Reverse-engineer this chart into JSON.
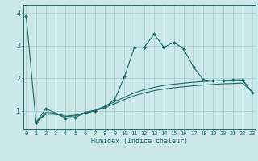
{
  "xlabel": "Humidex (Indice chaleur)",
  "bg_color": "#cce8e8",
  "grid_color": "#aacfcf",
  "line_color": "#1c6b6b",
  "yticks": [
    1,
    2,
    3,
    4
  ],
  "xticks": [
    0,
    1,
    2,
    3,
    4,
    5,
    6,
    7,
    8,
    9,
    10,
    11,
    12,
    13,
    14,
    15,
    16,
    17,
    18,
    19,
    20,
    21,
    22,
    23
  ],
  "x_spike": [
    0,
    1,
    2,
    3,
    4,
    5,
    6,
    7,
    8,
    9,
    10,
    11,
    12,
    13,
    14,
    15,
    16,
    17,
    18,
    19,
    20,
    21,
    22,
    23
  ],
  "y_spike": [
    3.9,
    0.65,
    1.07,
    0.93,
    0.78,
    0.8,
    0.95,
    1.0,
    1.12,
    1.35,
    2.05,
    2.95,
    2.95,
    3.35,
    2.95,
    3.1,
    2.9,
    2.35,
    1.95,
    1.92,
    1.92,
    1.95,
    1.95,
    1.55
  ],
  "x_smooth1": [
    1,
    2,
    3,
    4,
    5,
    6,
    7,
    8,
    9,
    10,
    11,
    12,
    13,
    14,
    15,
    16,
    17,
    18,
    19,
    20,
    21,
    22,
    23
  ],
  "y_smooth1": [
    0.65,
    0.9,
    0.9,
    0.83,
    0.85,
    0.92,
    1.0,
    1.1,
    1.22,
    1.35,
    1.46,
    1.55,
    1.62,
    1.67,
    1.71,
    1.74,
    1.77,
    1.79,
    1.81,
    1.83,
    1.84,
    1.85,
    1.57
  ],
  "x_smooth2": [
    1,
    2,
    3,
    4,
    5,
    6,
    7,
    8,
    9,
    10,
    11,
    12,
    13,
    14,
    15,
    16,
    17,
    18,
    19,
    20,
    21,
    22,
    23
  ],
  "y_smooth2": [
    0.65,
    0.95,
    0.93,
    0.84,
    0.87,
    0.95,
    1.02,
    1.14,
    1.28,
    1.42,
    1.55,
    1.65,
    1.72,
    1.78,
    1.82,
    1.85,
    1.88,
    1.9,
    1.92,
    1.93,
    1.93,
    1.93,
    1.57
  ]
}
